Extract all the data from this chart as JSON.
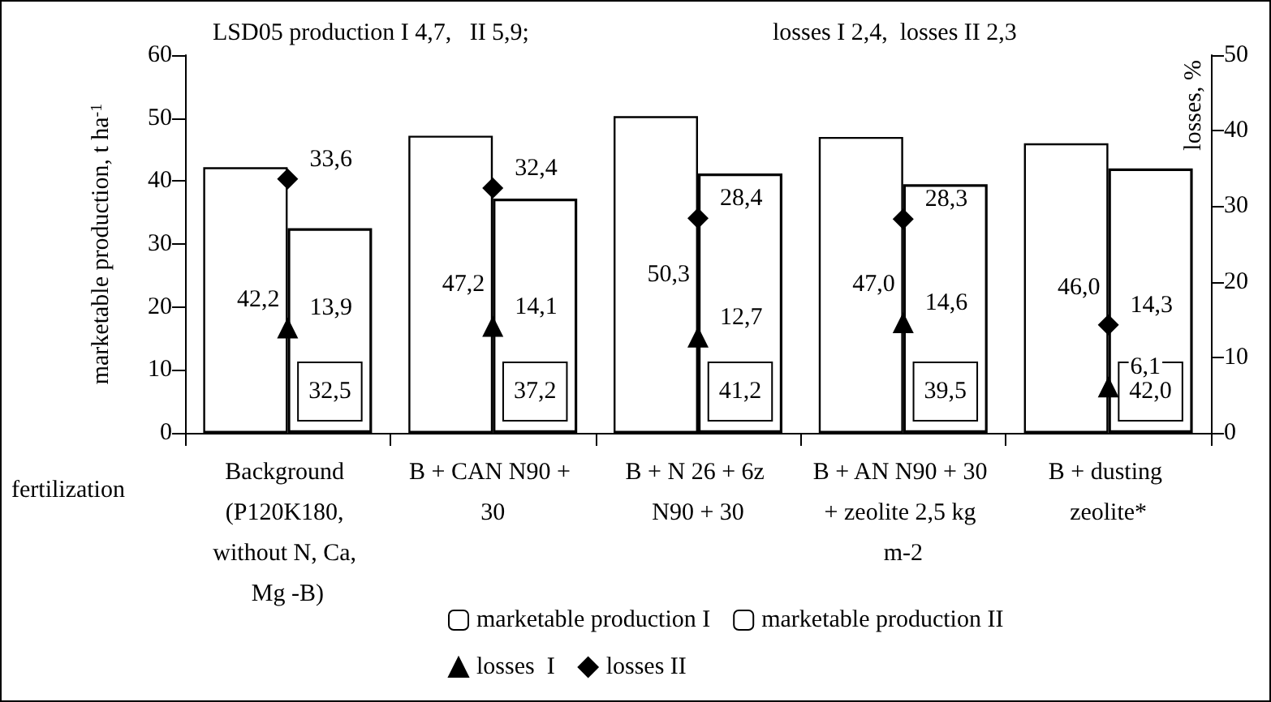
{
  "chart_data": {
    "type": "bar",
    "xlabel": "fertilization",
    "ylabel": "marketable production, t ha$^{-1}$",
    "y2label": "losses, %",
    "annotations": [
      "LSD05 production I 4,7,   II 5,9;",
      "losses I 2,4,  losses II 2,3"
    ],
    "categories": [
      "Background (P120K180, without N, Ca, Mg -B)",
      "B + CAN N90 + 30",
      "B + N 26 + 6z N90 + 30",
      "B + AN N90 + 30 + zeolite 2,5 kg m-2",
      "B + dusting zeolite*"
    ],
    "series": [
      {
        "name": "marketable production I",
        "type": "bar",
        "color": "#ffffff",
        "values": [
          42.2,
          47.2,
          50.3,
          47.0,
          46.0
        ],
        "value_labels": [
          "42,2",
          "47,2",
          "50,3",
          "47,0",
          "46,0"
        ]
      },
      {
        "name": "marketable production II",
        "type": "bar",
        "color": "#ffffff",
        "values": [
          32.5,
          37.2,
          41.2,
          39.5,
          42.0
        ],
        "value_labels": [
          "32,5",
          "37,2",
          "41,2",
          "39,5",
          "42,0"
        ]
      },
      {
        "name": "losses  I",
        "type": "scatter",
        "axis": "y2",
        "marker": "triangle",
        "color": "#000000",
        "values": [
          13.9,
          14.1,
          12.7,
          14.6,
          6.1
        ],
        "value_labels": [
          "13,9",
          "14,1",
          "12,7",
          "14,6",
          "6,1"
        ]
      },
      {
        "name": "losses II",
        "type": "scatter",
        "axis": "y2",
        "marker": "diamond",
        "color": "#000000",
        "values": [
          33.6,
          32.4,
          28.4,
          28.3,
          14.3
        ],
        "value_labels": [
          "33,6",
          "32,4",
          "28,4",
          "28,3",
          "14,3"
        ]
      }
    ],
    "ylim": [
      0,
      60
    ],
    "yticks": [
      0,
      10,
      20,
      30,
      40,
      50,
      60
    ],
    "y2lim": [
      0,
      50
    ],
    "y2ticks": [
      0,
      10,
      20,
      30,
      40,
      50
    ],
    "grid": false,
    "legend": "bottom"
  }
}
